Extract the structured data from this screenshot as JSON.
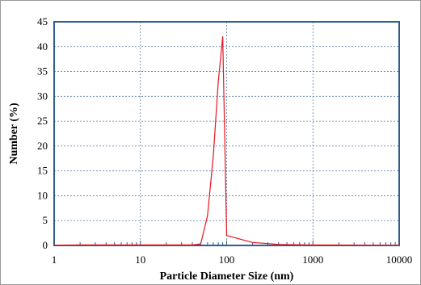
{
  "chart_data": {
    "type": "line",
    "xlabel": "Particle Diameter Size (nm)",
    "ylabel": "Number (%)",
    "xscale": "log",
    "xlim": [
      1,
      10000
    ],
    "ylim": [
      0,
      45
    ],
    "x_ticks": [
      "1",
      "10",
      "100",
      "1000",
      "10000"
    ],
    "y_ticks": [
      "0",
      "5",
      "10",
      "15",
      "20",
      "25",
      "30",
      "35",
      "40",
      "45"
    ],
    "grid": true,
    "legend": "none",
    "series": [
      {
        "color": "#e8141e",
        "x": [
          1,
          2,
          10,
          20,
          40,
          50,
          60,
          70,
          80,
          90,
          100,
          200,
          400,
          1000,
          10000
        ],
        "y": [
          0.05,
          0.1,
          0.1,
          0.1,
          0.1,
          0.3,
          6.0,
          18.0,
          33.0,
          42.0,
          2.0,
          0.6,
          0.2,
          0.1,
          0.05
        ]
      }
    ]
  }
}
